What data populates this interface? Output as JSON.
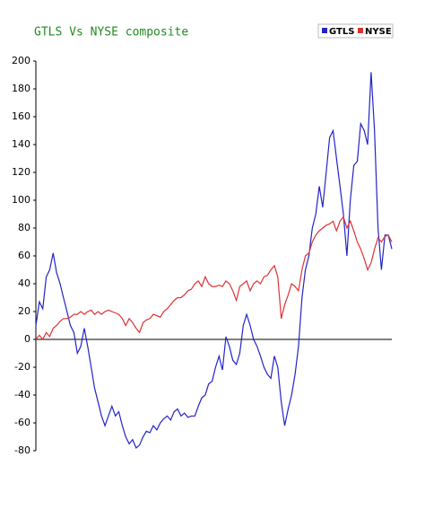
{
  "chart_data": {
    "type": "line",
    "title": "GTLS Vs NYSE composite",
    "ylim": [
      -80,
      200
    ],
    "yticks": [
      -80,
      -60,
      -40,
      -20,
      0,
      20,
      40,
      60,
      80,
      100,
      120,
      140,
      160,
      180,
      200
    ],
    "legend": "top-right",
    "series": [
      {
        "name": "GTLS",
        "color": "#2323c8",
        "values": [
          10,
          27,
          22,
          45,
          50,
          62,
          48,
          40,
          30,
          20,
          10,
          5,
          -10,
          -5,
          8,
          -5,
          -20,
          -35,
          -45,
          -55,
          -62,
          -55,
          -48,
          -55,
          -52,
          -62,
          -70,
          -75,
          -72,
          -78,
          -76,
          -70,
          -66,
          -67,
          -62,
          -65,
          -60,
          -57,
          -55,
          -58,
          -52,
          -50,
          -55,
          -53,
          -56,
          -55,
          -55,
          -48,
          -42,
          -40,
          -32,
          -30,
          -20,
          -12,
          -22,
          2,
          -5,
          -15,
          -18,
          -10,
          10,
          18,
          10,
          0,
          -5,
          -12,
          -20,
          -25,
          -28,
          -12,
          -20,
          -45,
          -62,
          -50,
          -40,
          -25,
          -5,
          30,
          50,
          60,
          80,
          90,
          110,
          95,
          120,
          145,
          150,
          130,
          110,
          90,
          60,
          100,
          125,
          128,
          155,
          150,
          140,
          192,
          150,
          80,
          50,
          75,
          75,
          65
        ]
      },
      {
        "name": "NYSE",
        "color": "#dd3333",
        "values": [
          0,
          3,
          0,
          5,
          2,
          8,
          10,
          13,
          15,
          15,
          16,
          18,
          18,
          20,
          18,
          20,
          21,
          18,
          20,
          18,
          20,
          21,
          20,
          19,
          18,
          15,
          10,
          15,
          12,
          8,
          5,
          12,
          14,
          15,
          18,
          17,
          16,
          20,
          22,
          25,
          28,
          30,
          30,
          32,
          35,
          36,
          40,
          42,
          38,
          45,
          40,
          38,
          38,
          39,
          38,
          42,
          40,
          35,
          28,
          38,
          40,
          42,
          35,
          40,
          42,
          40,
          45,
          46,
          50,
          53,
          45,
          15,
          25,
          32,
          40,
          38,
          35,
          50,
          60,
          62,
          70,
          75,
          78,
          80,
          82,
          83,
          85,
          78,
          85,
          88,
          80,
          85,
          78,
          70,
          65,
          58,
          50,
          55,
          65,
          73,
          70,
          74,
          75,
          70
        ]
      }
    ]
  }
}
